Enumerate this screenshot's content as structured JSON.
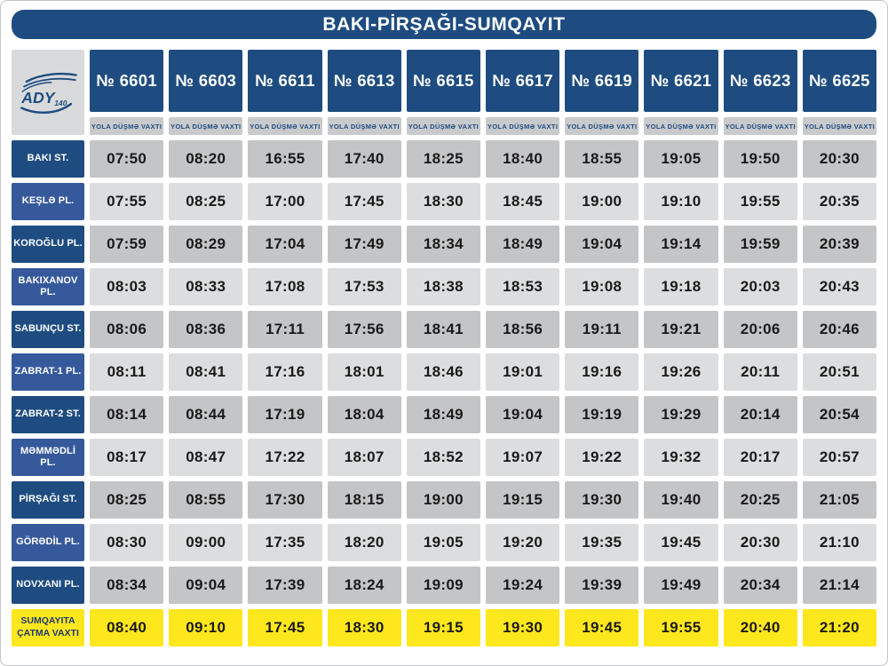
{
  "title": "BAKI-PİRŞAĞI-SUMQAYIT",
  "logo": {
    "brand": "ADY",
    "badge": "140."
  },
  "header": {
    "trains": [
      "№ 6601",
      "№ 6603",
      "№ 6611",
      "№ 6613",
      "№ 6615",
      "№ 6617",
      "№ 6619",
      "№ 6621",
      "№ 6623",
      "№ 6625"
    ],
    "departure_label": "YOLA DÜŞMƏ VAXTI"
  },
  "rows": [
    {
      "station": "BAKI ST.",
      "times": [
        "07:50",
        "08:20",
        "16:55",
        "17:40",
        "18:25",
        "18:40",
        "18:55",
        "19:05",
        "19:50",
        "20:30"
      ]
    },
    {
      "station": "KEŞLƏ PL.",
      "times": [
        "07:55",
        "08:25",
        "17:00",
        "17:45",
        "18:30",
        "18:45",
        "19:00",
        "19:10",
        "19:55",
        "20:35"
      ]
    },
    {
      "station": "KOROĞLU PL.",
      "times": [
        "07:59",
        "08:29",
        "17:04",
        "17:49",
        "18:34",
        "18:49",
        "19:04",
        "19:14",
        "19:59",
        "20:39"
      ]
    },
    {
      "station": "BAKIXANOV PL.",
      "times": [
        "08:03",
        "08:33",
        "17:08",
        "17:53",
        "18:38",
        "18:53",
        "19:08",
        "19:18",
        "20:03",
        "20:43"
      ]
    },
    {
      "station": "SABUNÇU ST.",
      "times": [
        "08:06",
        "08:36",
        "17:11",
        "17:56",
        "18:41",
        "18:56",
        "19:11",
        "19:21",
        "20:06",
        "20:46"
      ]
    },
    {
      "station": "ZABRAT-1 PL.",
      "times": [
        "08:11",
        "08:41",
        "17:16",
        "18:01",
        "18:46",
        "19:01",
        "19:16",
        "19:26",
        "20:11",
        "20:51"
      ]
    },
    {
      "station": "ZABRAT-2 ST.",
      "times": [
        "08:14",
        "08:44",
        "17:19",
        "18:04",
        "18:49",
        "19:04",
        "19:19",
        "19:29",
        "20:14",
        "20:54"
      ]
    },
    {
      "station": "MƏMMƏDLİ PL.",
      "times": [
        "08:17",
        "08:47",
        "17:22",
        "18:07",
        "18:52",
        "19:07",
        "19:22",
        "19:32",
        "20:17",
        "20:57"
      ]
    },
    {
      "station": "PİRŞAĞI ST.",
      "times": [
        "08:25",
        "08:55",
        "17:30",
        "18:15",
        "19:00",
        "19:15",
        "19:30",
        "19:40",
        "20:25",
        "21:05"
      ]
    },
    {
      "station": "GÖRƏDİL PL.",
      "times": [
        "08:30",
        "09:00",
        "17:35",
        "18:20",
        "19:05",
        "19:20",
        "19:35",
        "19:45",
        "20:30",
        "21:10"
      ]
    },
    {
      "station": "NOVXANI PL.",
      "times": [
        "08:34",
        "09:04",
        "17:39",
        "18:24",
        "19:09",
        "19:24",
        "19:39",
        "19:49",
        "20:34",
        "21:14"
      ]
    }
  ],
  "arrival": {
    "station": "SUMQAYITA ÇATMA VAXTI",
    "times": [
      "08:40",
      "09:10",
      "17:45",
      "18:30",
      "19:15",
      "19:30",
      "19:45",
      "19:55",
      "20:40",
      "21:20"
    ]
  },
  "colors": {
    "navy": "#1e4c80",
    "light_blue": "#36599c",
    "dark_gray_cell": "#c4c5c7",
    "light_gray_cell": "#dcddde",
    "sub_band_gray": "#c9cacc",
    "logo_cell_gray": "#d9dadb",
    "arrival_yellow": "#ffe71d"
  }
}
